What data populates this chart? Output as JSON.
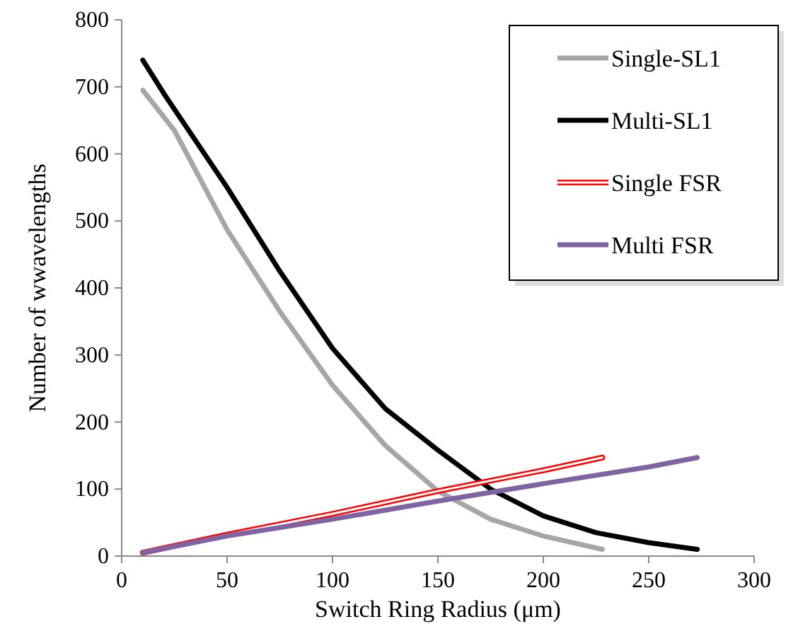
{
  "chart_data": {
    "type": "line",
    "xlabel": "Switch Ring Radius (μm)",
    "ylabel": "Number of wwavelengths",
    "xlim": [
      0,
      300
    ],
    "xticks": [
      0,
      50,
      100,
      150,
      200,
      250,
      300
    ],
    "ylim": [
      0,
      800
    ],
    "yticks": [
      0,
      100,
      200,
      300,
      400,
      500,
      600,
      700,
      800
    ],
    "grid": false,
    "legend": "top right",
    "marker": "none",
    "line_style": "solid",
    "series": [
      {
        "name": "Single-SL1",
        "color": "#a6a6a6",
        "x": [
          10,
          25,
          50,
          75,
          100,
          125,
          150,
          175,
          200,
          228
        ],
        "values": [
          695,
          635,
          487,
          365,
          255,
          165,
          97,
          55,
          30,
          10
        ]
      },
      {
        "name": "Multi-SL1",
        "color": "#000000",
        "x": [
          10,
          20,
          50,
          75,
          100,
          125,
          150,
          175,
          200,
          225,
          250,
          273
        ],
        "values": [
          740,
          690,
          550,
          425,
          310,
          220,
          158,
          100,
          60,
          35,
          20,
          10
        ]
      },
      {
        "name": "Single FSR",
        "color": "#ff0000",
        "x": [
          10,
          50,
          100,
          150,
          200,
          228
        ],
        "values": [
          5,
          32,
          63,
          97,
          128,
          147
        ]
      },
      {
        "name": "Multi FSR",
        "color": "#8064a2",
        "x": [
          10,
          50,
          100,
          150,
          200,
          250,
          273
        ],
        "values": [
          5,
          30,
          55,
          82,
          108,
          133,
          147
        ]
      }
    ]
  }
}
